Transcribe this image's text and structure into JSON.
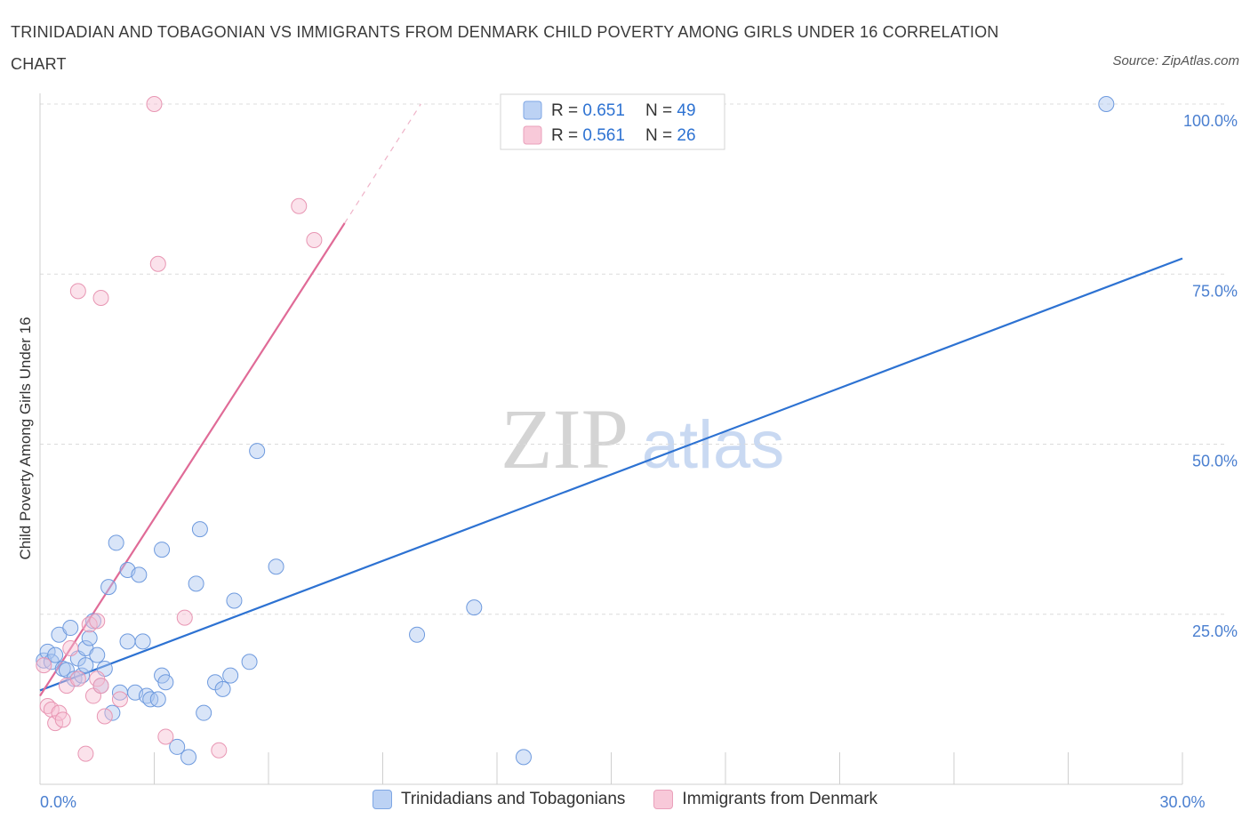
{
  "title": "TRINIDADIAN AND TOBAGONIAN VS IMMIGRANTS FROM DENMARK CHILD POVERTY AMONG GIRLS UNDER 16 CORRELATION CHART",
  "source": "Source: ZipAtlas.com",
  "watermark": {
    "zip": "ZIP",
    "atlas": "atlas"
  },
  "colors": {
    "blue": "#5b8fde",
    "blue_line": "#2d72d2",
    "pink": "#ec8fad",
    "pink_line": "#e06b97",
    "axis_text": "#4a7fd0"
  },
  "legend_top": [
    {
      "r_label": "R = ",
      "r_value": "0.651",
      "n_label": "N = ",
      "n_value": "49"
    },
    {
      "r_label": "R = ",
      "r_value": "0.561",
      "n_label": "N = ",
      "n_value": "26"
    }
  ],
  "chart_data": {
    "type": "scatter",
    "title": "TRINIDADIAN AND TOBAGONIAN VS IMMIGRANTS FROM DENMARK CHILD POVERTY AMONG GIRLS UNDER 16 CORRELATION CHART",
    "xlabel": "",
    "ylabel": "Child Poverty Among Girls Under 16",
    "xlim": [
      0,
      30
    ],
    "ylim": [
      0,
      100
    ],
    "x_tick_labels": [
      "0.0%",
      "30.0%"
    ],
    "y_tick_labels": [
      "25.0%",
      "50.0%",
      "75.0%",
      "100.0%"
    ],
    "y_ticks": [
      25,
      50,
      75,
      100
    ],
    "grid": true,
    "legend": "bottom-center",
    "series": [
      {
        "name": "Trinidadians and Tobagonians",
        "r": 0.651,
        "n": 49,
        "trend": {
          "x0": 0,
          "y0": 13.8,
          "x1": 30,
          "y1": 77.3
        },
        "points": [
          [
            0.1,
            18.2
          ],
          [
            0.2,
            19.5
          ],
          [
            0.3,
            18.0
          ],
          [
            0.4,
            19.0
          ],
          [
            0.5,
            22.0
          ],
          [
            0.6,
            17.0
          ],
          [
            0.7,
            16.8
          ],
          [
            0.8,
            23.0
          ],
          [
            0.9,
            15.5
          ],
          [
            1.0,
            18.5
          ],
          [
            1.1,
            16.0
          ],
          [
            1.2,
            20.0
          ],
          [
            1.2,
            17.5
          ],
          [
            1.3,
            21.5
          ],
          [
            1.4,
            24.0
          ],
          [
            1.5,
            19.0
          ],
          [
            1.6,
            14.5
          ],
          [
            1.7,
            17.0
          ],
          [
            1.8,
            29.0
          ],
          [
            1.9,
            10.5
          ],
          [
            2.0,
            35.5
          ],
          [
            2.1,
            13.5
          ],
          [
            2.3,
            31.5
          ],
          [
            2.3,
            21.0
          ],
          [
            2.5,
            13.5
          ],
          [
            2.6,
            30.8
          ],
          [
            2.7,
            21.0
          ],
          [
            2.8,
            13.0
          ],
          [
            2.9,
            12.5
          ],
          [
            3.1,
            12.5
          ],
          [
            3.2,
            16.0
          ],
          [
            3.2,
            34.5
          ],
          [
            3.3,
            15.0
          ],
          [
            3.6,
            5.5
          ],
          [
            3.9,
            4.0
          ],
          [
            4.1,
            29.5
          ],
          [
            4.2,
            37.5
          ],
          [
            4.3,
            10.5
          ],
          [
            4.6,
            15.0
          ],
          [
            4.8,
            14.0
          ],
          [
            5.0,
            16.0
          ],
          [
            5.1,
            27.0
          ],
          [
            5.5,
            18.0
          ],
          [
            5.7,
            49.0
          ],
          [
            6.2,
            32.0
          ],
          [
            9.9,
            22.0
          ],
          [
            11.4,
            26.0
          ],
          [
            12.7,
            4.0
          ],
          [
            28.0,
            100.0
          ]
        ]
      },
      {
        "name": "Immigrants from Denmark",
        "r": 0.561,
        "n": 26,
        "trend": {
          "x0": 0,
          "y0": 13.0,
          "x1": 8.0,
          "y1": 82.5,
          "dash_x1": 10.0,
          "dash_y1": 100.0
        },
        "points": [
          [
            0.1,
            17.5
          ],
          [
            0.2,
            11.5
          ],
          [
            0.3,
            11.0
          ],
          [
            0.4,
            9.0
          ],
          [
            0.5,
            10.5
          ],
          [
            0.6,
            9.5
          ],
          [
            0.7,
            14.5
          ],
          [
            0.8,
            20.0
          ],
          [
            1.0,
            15.5
          ],
          [
            1.0,
            72.5
          ],
          [
            1.2,
            4.5
          ],
          [
            1.3,
            23.5
          ],
          [
            1.4,
            13.0
          ],
          [
            1.5,
            24.0
          ],
          [
            1.5,
            15.5
          ],
          [
            1.6,
            14.5
          ],
          [
            1.6,
            71.5
          ],
          [
            1.7,
            10.0
          ],
          [
            2.1,
            12.5
          ],
          [
            3.0,
            100.0
          ],
          [
            3.1,
            76.5
          ],
          [
            3.3,
            7.0
          ],
          [
            3.8,
            24.5
          ],
          [
            4.7,
            5.0
          ],
          [
            6.8,
            85.0
          ],
          [
            7.2,
            80.0
          ]
        ]
      }
    ]
  }
}
